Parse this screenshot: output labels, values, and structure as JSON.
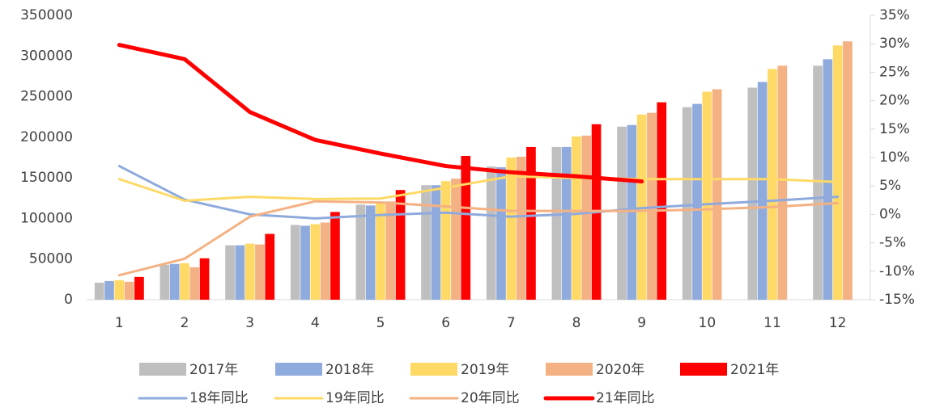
{
  "chart_data": {
    "type": "bar",
    "categories": [
      "1",
      "2",
      "3",
      "4",
      "5",
      "6",
      "7",
      "8",
      "9",
      "10",
      "11",
      "12"
    ],
    "series": [
      {
        "name": "2017年",
        "color": "#bfbfbf",
        "values": [
          21000,
          43000,
          67000,
          92000,
          117000,
          141000,
          164000,
          188000,
          213000,
          237000,
          261000,
          288000
        ]
      },
      {
        "name": "2018年",
        "color": "#8faadc",
        "values": [
          23000,
          44000,
          67000,
          91000,
          116000,
          141000,
          163000,
          188000,
          215000,
          241000,
          268000,
          296000
        ]
      },
      {
        "name": "2019年",
        "color": "#ffd966",
        "values": [
          24000,
          45000,
          69000,
          93000,
          119000,
          146000,
          175000,
          201000,
          228000,
          256000,
          284000,
          313000
        ]
      },
      {
        "name": "2020年",
        "color": "#f4b183",
        "values": [
          22000,
          40000,
          68000,
          95000,
          121000,
          149000,
          176000,
          202000,
          230000,
          259000,
          288000,
          318000
        ]
      },
      {
        "name": "2021年",
        "color": "#ff0000",
        "values": [
          28000,
          51000,
          81000,
          108000,
          135000,
          177000,
          188000,
          216000,
          243000,
          null,
          null,
          null
        ]
      },
      {
        "name": "18年同比",
        "type": "line",
        "axis": "y2",
        "color": "#8faadc",
        "values": [
          8.5,
          2.6,
          0,
          -0.7,
          -0.1,
          0.3,
          -0.4,
          0.1,
          1.1,
          1.8,
          2.4,
          3.1
        ]
      },
      {
        "name": "19年同比",
        "type": "line",
        "axis": "y2",
        "color": "#ffd966",
        "values": [
          6.2,
          2.4,
          3.1,
          2.7,
          2.8,
          4.7,
          6.7,
          6.4,
          6.2,
          6.2,
          6.2,
          5.7
        ]
      },
      {
        "name": "20年同比",
        "type": "line",
        "axis": "y2",
        "color": "#f4b183",
        "values": [
          -10.7,
          -7.8,
          -0.4,
          2.3,
          2.1,
          1.4,
          0.6,
          0.6,
          0.6,
          0.9,
          1.3,
          2.0
        ]
      },
      {
        "name": "21年同比",
        "type": "line",
        "axis": "y2",
        "color": "#ff0000",
        "values": [
          29.8,
          27.3,
          18.0,
          13.1,
          10.7,
          8.5,
          7.4,
          6.7,
          5.8,
          null,
          null,
          null
        ]
      }
    ],
    "ylim": [
      0,
      350000
    ],
    "yticks": [
      0,
      50000,
      100000,
      150000,
      200000,
      250000,
      300000,
      350000
    ],
    "y2lim": [
      -15,
      35
    ],
    "y2ticks": [
      {
        "value": -15,
        "label": "-15%"
      },
      {
        "value": -10,
        "label": "-10%"
      },
      {
        "value": -5,
        "label": "-5%"
      },
      {
        "value": 0,
        "label": "0%"
      },
      {
        "value": 5,
        "label": "5%"
      },
      {
        "value": 10,
        "label": "10%"
      },
      {
        "value": 15,
        "label": "15%"
      },
      {
        "value": 20,
        "label": "20%"
      },
      {
        "value": 25,
        "label": "25%"
      },
      {
        "value": 30,
        "label": "30%"
      },
      {
        "value": 35,
        "label": "35%"
      }
    ],
    "legend": "bottom"
  }
}
